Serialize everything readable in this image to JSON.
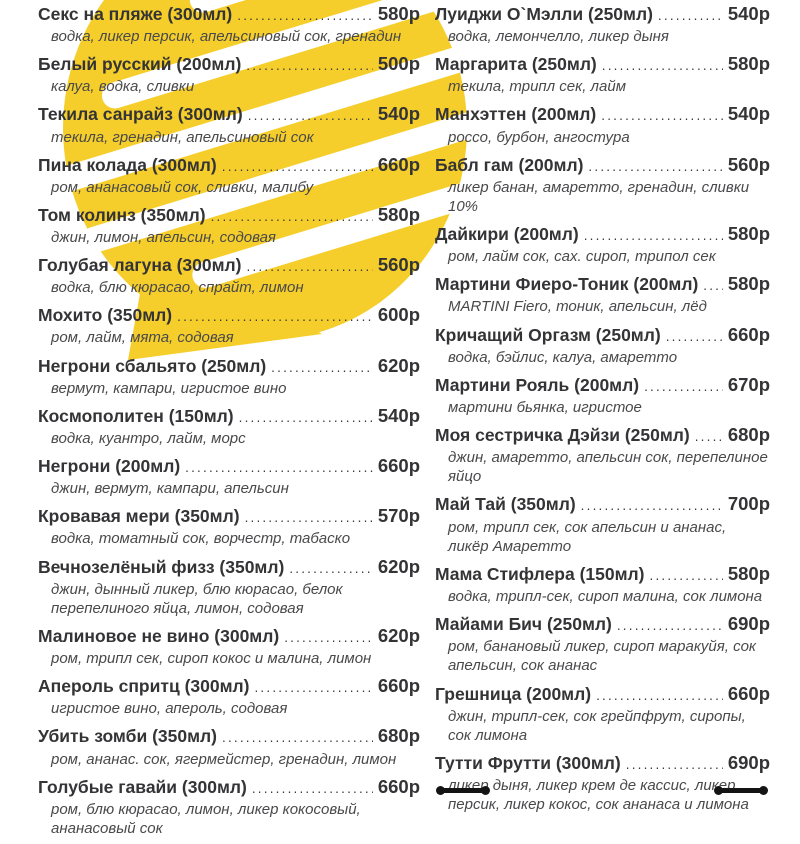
{
  "menu": {
    "columns": [
      {
        "side": "left",
        "items": [
          {
            "title": "Секс на пляже (300мл)",
            "price": "580р",
            "ingredients": "водка, ликер персик, апельсиновый сок, гренадин"
          },
          {
            "title": "Белый русский (200мл)",
            "price": "500р",
            "ingredients": "калуа, водка, сливки"
          },
          {
            "title": "Текила санрайз (300мл)",
            "price": "540р",
            "ingredients": "текила, гренадин, апельсиновый сок"
          },
          {
            "title": "Пина колада (300мл)",
            "price": "660р",
            "ingredients": "ром, ананасовый сок, сливки, малибу"
          },
          {
            "title": "Том колинз (350мл)",
            "price": "580р",
            "ingredients": "джин, лимон, апельсин, содовая"
          },
          {
            "title": "Голубая лагуна (300мл)",
            "price": "560р",
            "ingredients": "водка, блю кюрасао, спрайт, лимон"
          },
          {
            "title": "Мохито (350мл)",
            "price": "600р",
            "ingredients": "ром, лайм, мята, содовая"
          },
          {
            "title": "Негрони сбальято (250мл)",
            "price": "620р",
            "ingredients": "вермут, кампари, игристое вино"
          },
          {
            "title": "Космополитен (150мл)",
            "price": "540р",
            "ingredients": "водка, куантро, лайм, морс"
          },
          {
            "title": "Негрони (200мл)",
            "price": "660р",
            "ingredients": "джин, вермут, кампари, апельсин"
          },
          {
            "title": "Кровавая мери (350мл)",
            "price": "570р",
            "ingredients": "водка, томатный сок, ворчестр, табаско"
          },
          {
            "title": "Вечнозелёный физз (350мл)",
            "price": "620р",
            "ingredients": "джин, дынный ликер, блю кюрасао, белок перепелиного яйца, лимон, содовая"
          },
          {
            "title": "Малиновое не вино (300мл)",
            "price": "620р",
            "ingredients": "ром, трипл сек, сироп кокос и малина, лимон"
          },
          {
            "title": "Апероль спритц (300мл)",
            "price": "660р",
            "ingredients": "игристое вино, апероль, содовая"
          },
          {
            "title": "Убить зомби (350мл)",
            "price": "680р",
            "ingredients": "ром, ананас. сок, ягермейстер, гренадин, лимон"
          },
          {
            "title": "Голубые гавайи (300мл)",
            "price": "660р",
            "ingredients": "ром, блю кюрасао, лимон, ликер кокосовый, ананасовый сок"
          }
        ]
      },
      {
        "side": "right",
        "items": [
          {
            "title": "Луиджи О`Мэлли (250мл)",
            "price": "540р",
            "ingredients": "водка, лемончелло, ликер дыня"
          },
          {
            "title": "Маргарита (250мл)",
            "price": "580р",
            "ingredients": "текила, трипл сек, лайм"
          },
          {
            "title": "Манхэттен (200мл)",
            "price": "540р",
            "ingredients": "россо, бурбон, ангостура"
          },
          {
            "title": "Бабл гам (200мл)",
            "price": "560р",
            "ingredients": "ликер банан, амаретто, гренадин, сливки 10%"
          },
          {
            "title": "Дайкири (200мл)",
            "price": "580р",
            "ingredients": "ром, лайм сок, сах. сироп, трипол сек"
          },
          {
            "title": "Мартини Фиеро-Тоник (200мл)",
            "price": "580р",
            "ingredients": "MARTINI Fiero, тоник, апельсин, лёд"
          },
          {
            "title": "Кричащий Оргазм (250мл)",
            "price": "660р",
            "ingredients": "водка, бэйлис, калуа, амаретто"
          },
          {
            "title": "Мартини Рояль (200мл)",
            "price": "670р",
            "ingredients": "мартини бьянка, игристое"
          },
          {
            "title": "Моя сестричка Дэйзи (250мл)",
            "price": "680р",
            "ingredients": "джин, амаретто, апельсин сок, перепелиное яйцо"
          },
          {
            "title": "Май Тай (350мл)",
            "price": "700р",
            "ingredients": "ром, трипл сек, сок апельсин и ананас, ликёр Амаретто"
          },
          {
            "title": "Мама Стифлера (150мл)",
            "price": "580р",
            "ingredients": "водка, трипл-сек, сироп малина, сок лимона"
          },
          {
            "title": "Майами Бич (250мл)",
            "price": "690р",
            "ingredients": "ром, банановый ликер, сироп маракуйя, сок апельсин, сок ананас"
          },
          {
            "title": "Грешница (200мл)",
            "price": "660р",
            "ingredients": "джин, трипл-сек, сок грейпфрут, сиропы, сок лимона"
          },
          {
            "title": "Тутти Фрутти (300мл)",
            "price": "690р",
            "ingredients": "ликер дыня, ликер крем де кассис, ликер персик, ликер кокос, сок ананаса и лимона"
          }
        ]
      }
    ]
  },
  "decor": {
    "accent_yellow": "#F5CE2B",
    "ornament_color": "#141414",
    "bottom_ornaments": [
      "barbell-left",
      "barbell-right"
    ]
  }
}
